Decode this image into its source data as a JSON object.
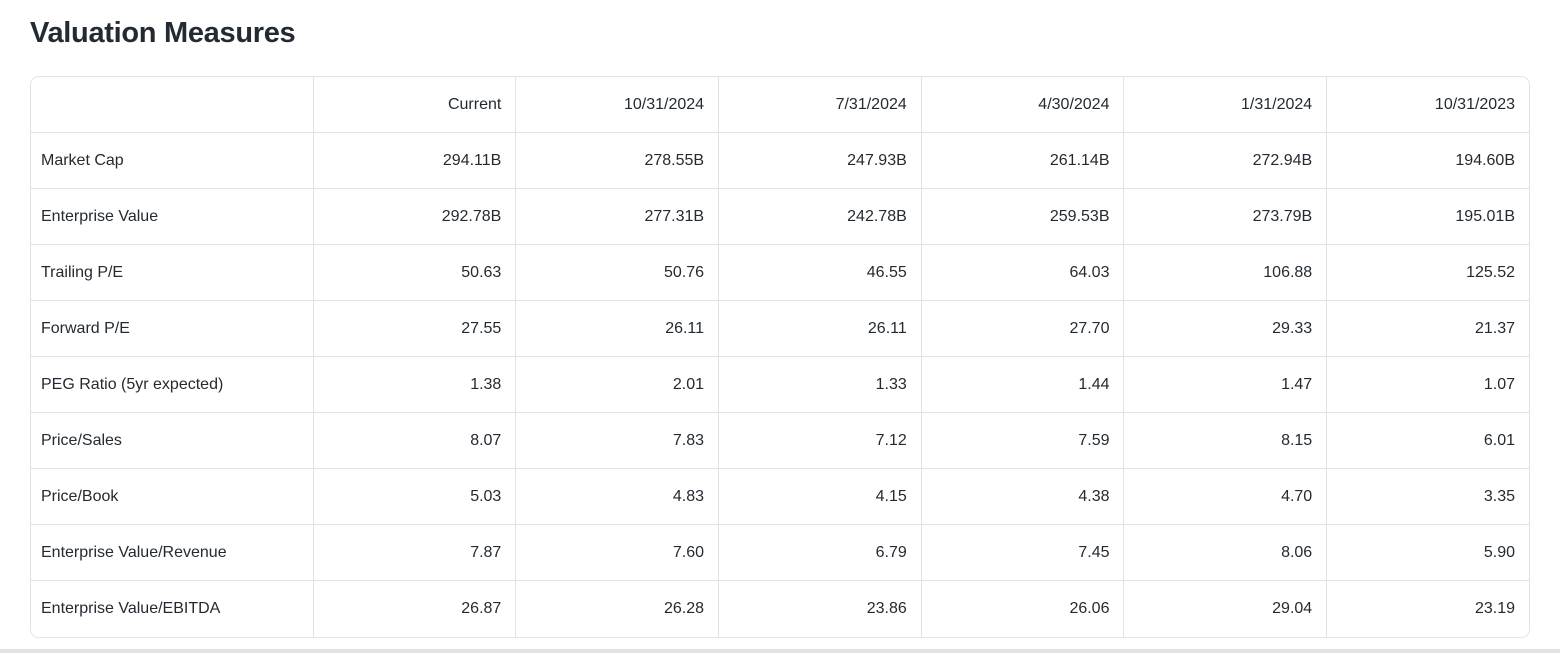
{
  "page": {
    "title": "Valuation Measures"
  },
  "table": {
    "columns": [
      "Current",
      "10/31/2024",
      "7/31/2024",
      "4/30/2024",
      "1/31/2024",
      "10/31/2023"
    ],
    "rows": [
      {
        "label": "Market Cap",
        "values": [
          "294.11B",
          "278.55B",
          "247.93B",
          "261.14B",
          "272.94B",
          "194.60B"
        ]
      },
      {
        "label": "Enterprise Value",
        "values": [
          "292.78B",
          "277.31B",
          "242.78B",
          "259.53B",
          "273.79B",
          "195.01B"
        ]
      },
      {
        "label": "Trailing P/E",
        "values": [
          "50.63",
          "50.76",
          "46.55",
          "64.03",
          "106.88",
          "125.52"
        ]
      },
      {
        "label": "Forward P/E",
        "values": [
          "27.55",
          "26.11",
          "26.11",
          "27.70",
          "29.33",
          "21.37"
        ]
      },
      {
        "label": "PEG Ratio (5yr expected)",
        "values": [
          "1.38",
          "2.01",
          "1.33",
          "1.44",
          "1.47",
          "1.07"
        ]
      },
      {
        "label": "Price/Sales",
        "values": [
          "8.07",
          "7.83",
          "7.12",
          "7.59",
          "8.15",
          "6.01"
        ]
      },
      {
        "label": "Price/Book",
        "values": [
          "5.03",
          "4.83",
          "4.15",
          "4.38",
          "4.70",
          "3.35"
        ]
      },
      {
        "label": "Enterprise Value/Revenue",
        "values": [
          "7.87",
          "7.60",
          "6.79",
          "7.45",
          "8.06",
          "5.90"
        ]
      },
      {
        "label": "Enterprise Value/EBITDA",
        "values": [
          "26.87",
          "26.28",
          "23.86",
          "26.06",
          "29.04",
          "23.19"
        ]
      }
    ]
  },
  "colors": {
    "text": "#232a31",
    "border": "#dfe2e7",
    "background": "#ffffff",
    "bottom_bar": "#e0e2e6"
  }
}
